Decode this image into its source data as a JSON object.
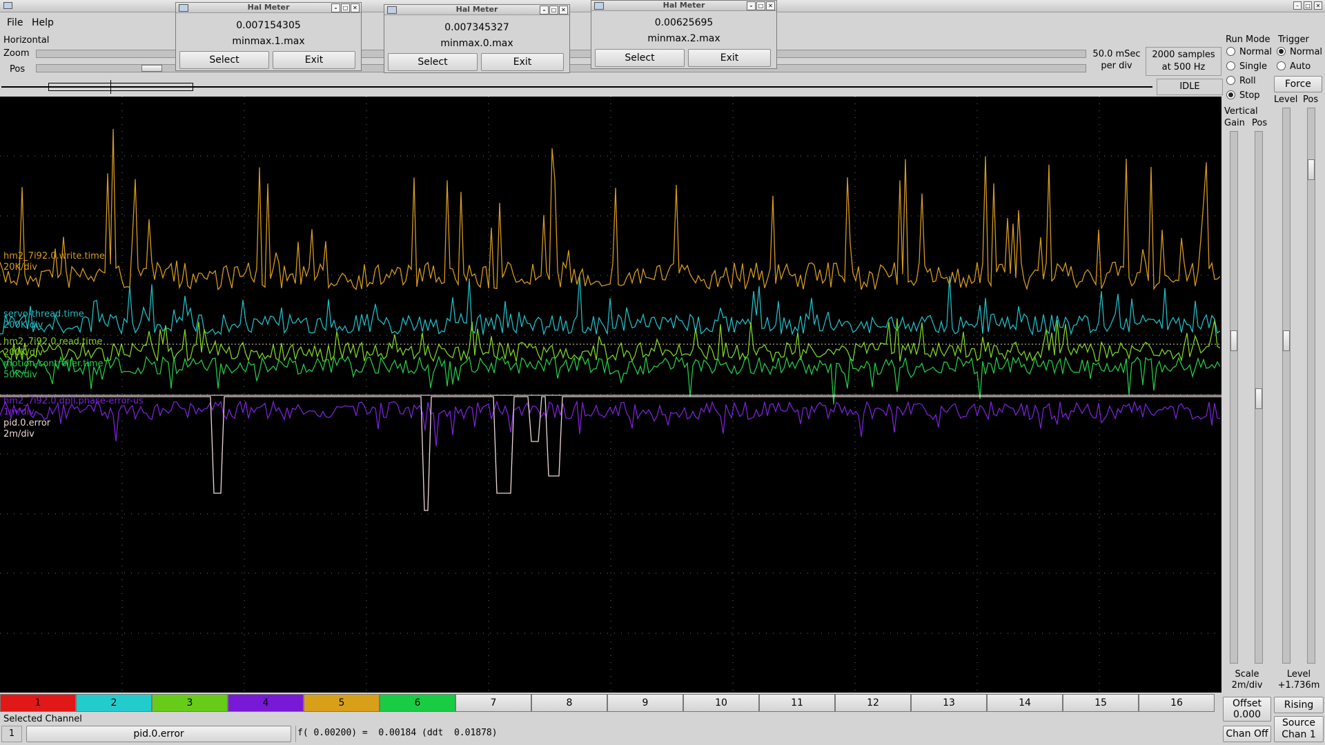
{
  "title_bar": {
    "text": ""
  },
  "menu": {
    "file": "File",
    "help": "Help"
  },
  "horizontal": {
    "label": "Horizontal",
    "zoom_label": "Zoom",
    "pos_label": "Pos",
    "rate_line1": "50.0 mSec",
    "rate_line2": "per div",
    "samples_line1": "2000 samples",
    "samples_line2": "at 500 Hz",
    "status": "IDLE"
  },
  "run_mode": {
    "label": "Run Mode",
    "options": [
      "Normal",
      "Single",
      "Roll",
      "Stop"
    ],
    "selected": "Stop"
  },
  "trigger": {
    "label": "Trigger",
    "options": [
      "Normal",
      "Auto"
    ],
    "selected": "Normal",
    "force_label": "Force",
    "level_label": "Level",
    "pos_label": "Pos",
    "level_title": "Level",
    "level_value": "+1.736m",
    "edge": "Rising",
    "source_line1": "Source",
    "source_line2": "Chan  1"
  },
  "vertical": {
    "label": "Vertical",
    "gain_label": "Gain",
    "pos_label": "Pos",
    "scale_title": "Scale",
    "scale_value": "2m/div",
    "offset_title": "Offset",
    "offset_value": "0.000",
    "chan_off": "Chan Off"
  },
  "hal_meters": [
    {
      "title": "Hal Meter",
      "value": "0.007154305",
      "pin": "minmax.1.max",
      "select": "Select",
      "exit": "Exit"
    },
    {
      "title": "Hal Meter",
      "value": "0.007345327",
      "pin": "minmax.0.max",
      "select": "Select",
      "exit": "Exit"
    },
    {
      "title": "Hal Meter",
      "value": "0.00625695",
      "pin": "minmax.2.max",
      "select": "Select",
      "exit": "Exit"
    }
  ],
  "traces": [
    {
      "name": "hm2_7i92.0.write.time",
      "scale": "20K/div",
      "color": "#d69a1e"
    },
    {
      "name": "servo-thread.time",
      "scale": "200K/div",
      "color": "#20bcc4"
    },
    {
      "name": "hm2_7i92.0.read.time",
      "scale": "200K/div",
      "color": "#7ed321"
    },
    {
      "name": "motion-controller.time",
      "scale": "50K/div",
      "color": "#22c84a"
    },
    {
      "name": "hm2_7i92.0.dpll.phase-error-us",
      "scale": "1m/div",
      "color": "#7a22d6"
    },
    {
      "name": "pid.0.error",
      "scale": "2m/div",
      "color": "#f0d8d8"
    }
  ],
  "channels": [
    {
      "num": "1",
      "color": "#e01818"
    },
    {
      "num": "2",
      "color": "#22cccc"
    },
    {
      "num": "3",
      "color": "#66cc18"
    },
    {
      "num": "4",
      "color": "#7a18d8"
    },
    {
      "num": "5",
      "color": "#d8a018"
    },
    {
      "num": "6",
      "color": "#18cc44"
    },
    {
      "num": "7",
      "color": ""
    },
    {
      "num": "8",
      "color": ""
    },
    {
      "num": "9",
      "color": ""
    },
    {
      "num": "10",
      "color": ""
    },
    {
      "num": "11",
      "color": ""
    },
    {
      "num": "12",
      "color": ""
    },
    {
      "num": "13",
      "color": ""
    },
    {
      "num": "14",
      "color": ""
    },
    {
      "num": "15",
      "color": ""
    },
    {
      "num": "16",
      "color": ""
    }
  ],
  "selected_channel": {
    "label": "Selected Channel",
    "number": "1",
    "name": "pid.0.error",
    "readout": "f( 0.00200) =  0.00184 (ddt  0.01878)"
  }
}
